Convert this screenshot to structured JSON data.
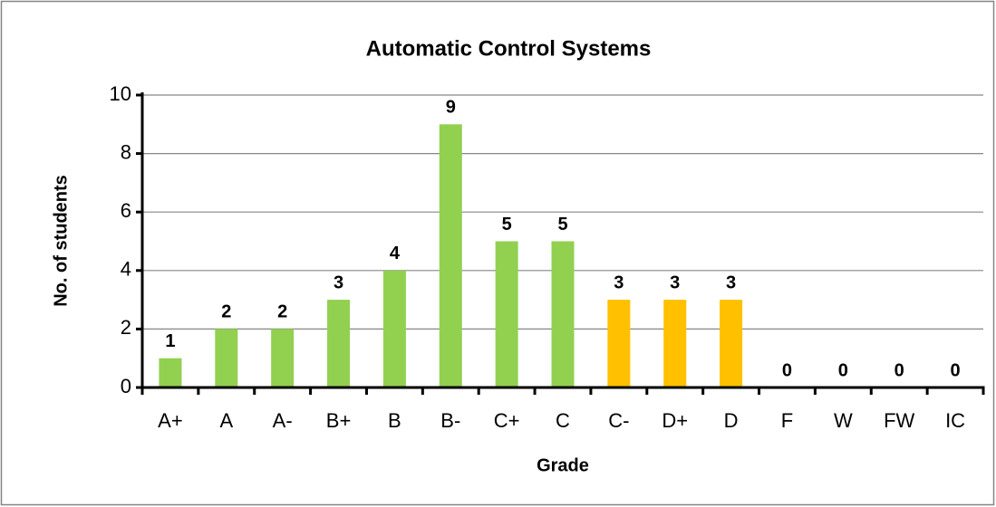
{
  "chart_data": {
    "type": "bar",
    "title": "Automatic Control Systems",
    "x_label": "Grade",
    "y_label": "No. of students",
    "categories": [
      "A+",
      "A",
      "A-",
      "B+",
      "B",
      "B-",
      "C+",
      "C",
      "C-",
      "D+",
      "D",
      "F",
      "W",
      "FW",
      "IC"
    ],
    "values": [
      1,
      2,
      2,
      3,
      4,
      9,
      5,
      5,
      3,
      3,
      3,
      0,
      0,
      0,
      0
    ],
    "colors": [
      "#92d050",
      "#92d050",
      "#92d050",
      "#92d050",
      "#92d050",
      "#92d050",
      "#92d050",
      "#92d050",
      "#ffc000",
      "#ffc000",
      "#ffc000",
      "#ffc000",
      "#ffc000",
      "#ffc000",
      "#ffc000"
    ],
    "ylim": [
      0,
      10
    ],
    "yticks": [
      0,
      2,
      4,
      6,
      8,
      10
    ],
    "grid": true
  }
}
